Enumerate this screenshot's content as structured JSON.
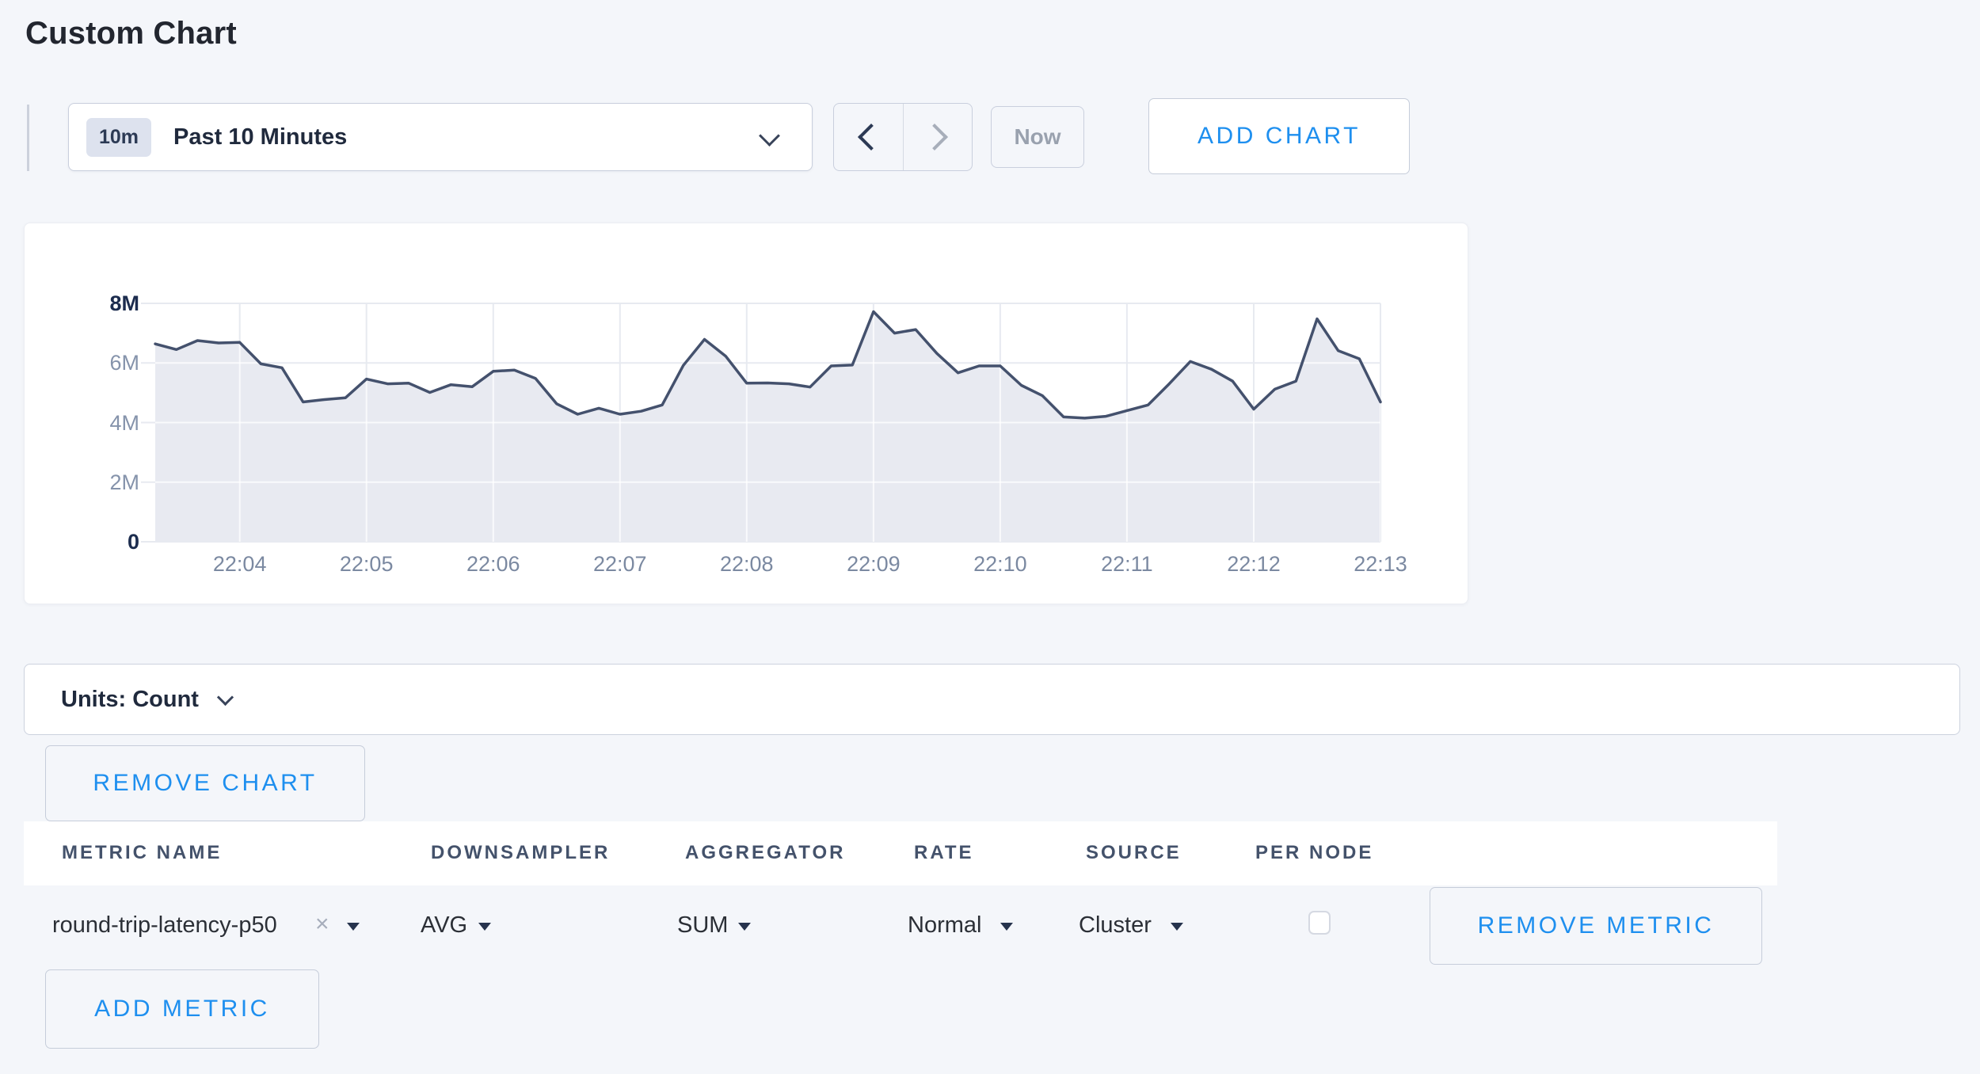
{
  "page": {
    "title": "Custom Chart"
  },
  "toolbar": {
    "time_badge": "10m",
    "time_range_label": "Past 10 Minutes",
    "now_label": "Now",
    "add_chart_label": "ADD CHART"
  },
  "chart_data": {
    "type": "area",
    "title": "",
    "xlabel": "",
    "ylabel": "count",
    "x_start": "22:03:20",
    "interval_seconds": 10,
    "values_millions": [
      6.64,
      6.45,
      6.75,
      6.67,
      6.69,
      5.97,
      5.84,
      4.69,
      4.77,
      4.83,
      5.46,
      5.3,
      5.32,
      5.01,
      5.27,
      5.2,
      5.72,
      5.76,
      5.48,
      4.63,
      4.28,
      4.48,
      4.28,
      4.38,
      4.59,
      5.92,
      6.79,
      6.23,
      5.32,
      5.33,
      5.3,
      5.19,
      5.9,
      5.93,
      7.72,
      7.0,
      7.12,
      6.32,
      5.67,
      5.9,
      5.9,
      5.25,
      4.9,
      4.19,
      4.15,
      4.21,
      4.4,
      4.59,
      5.3,
      6.05,
      5.79,
      5.39,
      4.45,
      5.12,
      5.39,
      7.48,
      6.41,
      6.14,
      4.69
    ],
    "x_tick_labels": [
      "22:04",
      "22:05",
      "22:06",
      "22:07",
      "22:08",
      "22:09",
      "22:10",
      "22:11",
      "22:12",
      "22:13"
    ],
    "x_tick_indices": [
      4,
      10,
      16,
      22,
      28,
      34,
      40,
      46,
      52,
      58
    ],
    "y_ticks": [
      {
        "label": "0",
        "value": 0,
        "bold": true
      },
      {
        "label": "2M",
        "value": 2,
        "bold": false
      },
      {
        "label": "4M",
        "value": 4,
        "bold": false
      },
      {
        "label": "6M",
        "value": 6,
        "bold": false
      },
      {
        "label": "8M",
        "value": 8,
        "bold": true
      }
    ],
    "ylim": [
      0,
      8
    ],
    "grid": true,
    "legend": "none",
    "line_color": "#44516d",
    "fill_color": "#e8eaf1",
    "gridline_color": "#e7eaf0",
    "gridline_in_fill_color": "rgba(255,255,255,0.75)"
  },
  "units_bar": {
    "label": "Units: Count"
  },
  "chart_actions": {
    "remove_chart_label": "REMOVE CHART",
    "add_metric_label": "ADD METRIC"
  },
  "metrics_table": {
    "headers": [
      "METRIC NAME",
      "DOWNSAMPLER",
      "AGGREGATOR",
      "RATE",
      "SOURCE",
      "PER NODE"
    ],
    "rows": [
      {
        "metric_name": "round-trip-latency-p50",
        "remove_tag_icon": "×",
        "downsampler": "AVG",
        "aggregator": "SUM",
        "rate": "Normal",
        "source": "Cluster",
        "per_node_checked": false,
        "remove_label": "REMOVE METRIC"
      }
    ]
  },
  "colors": {
    "accent_blue": "#1e8fef",
    "page_background": "#f4f6fa",
    "panel_white": "#ffffff",
    "border_gray": "#c9cfdd",
    "dark_navy": "#22304c"
  }
}
